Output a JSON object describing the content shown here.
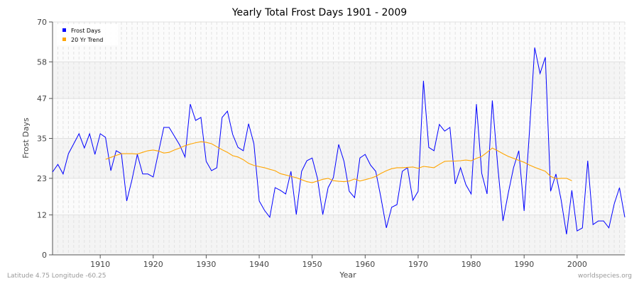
{
  "chart_data": {
    "type": "line",
    "title": "Yearly Total Frost Days 1901 - 2009",
    "xlabel": "Year",
    "ylabel": "Frost Days",
    "xlim": [
      1901,
      2009
    ],
    "ylim": [
      0,
      70
    ],
    "yticks": [
      0,
      12,
      23,
      35,
      47,
      58,
      70
    ],
    "xticks": [
      1910,
      1920,
      1930,
      1940,
      1950,
      1960,
      1970,
      1980,
      1990,
      2000
    ],
    "grid": true,
    "legend_position": "top-left",
    "series": [
      {
        "name": "Frost Days",
        "color": "#0000ff",
        "x_start": 1901,
        "values": [
          24.9,
          27.2,
          24.3,
          30.4,
          33.4,
          36.4,
          32.1,
          36.4,
          30.2,
          36.4,
          35.3,
          25.3,
          31.3,
          30.4,
          16.2,
          22.6,
          30.2,
          24.3,
          24.3,
          23.4,
          30.9,
          38.3,
          38.3,
          35.7,
          33.0,
          29.4,
          45.3,
          40.4,
          41.3,
          28.1,
          25.3,
          26.2,
          41.3,
          43.2,
          36.2,
          32.3,
          31.3,
          39.4,
          33.4,
          16.2,
          13.4,
          11.3,
          20.2,
          19.4,
          18.3,
          25.1,
          12.1,
          25.1,
          28.3,
          29.1,
          23.0,
          12.1,
          20.2,
          23.2,
          33.2,
          28.1,
          19.1,
          17.2,
          29.1,
          30.2,
          27.0,
          25.1,
          17.0,
          8.1,
          14.3,
          15.1,
          25.1,
          26.2,
          16.4,
          19.1,
          52.3,
          32.3,
          31.3,
          39.2,
          37.2,
          38.3,
          21.3,
          26.2,
          21.1,
          18.3,
          45.3,
          24.5,
          18.3,
          46.4,
          27.0,
          10.2,
          18.5,
          26.2,
          31.3,
          13.2,
          37.0,
          62.3,
          54.5,
          59.4,
          19.1,
          24.3,
          16.4,
          6.2,
          19.4,
          7.2,
          8.1,
          28.3,
          9.1,
          10.2,
          10.2,
          8.1,
          15.3,
          20.2,
          11.3
        ]
      },
      {
        "name": "20 Yr Trend",
        "color": "#ffa500",
        "x_start": 1911,
        "values": [
          28.7,
          29.3,
          29.9,
          30.4,
          30.4,
          30.4,
          30.3,
          30.8,
          31.3,
          31.5,
          31.2,
          30.6,
          30.8,
          31.5,
          32.1,
          32.8,
          33.3,
          33.7,
          34.0,
          33.8,
          33.4,
          32.5,
          31.6,
          30.8,
          29.8,
          29.4,
          28.6,
          27.5,
          26.9,
          26.5,
          26.2,
          25.7,
          25.3,
          24.4,
          24.0,
          23.6,
          23.2,
          22.6,
          22.0,
          21.7,
          22.2,
          22.7,
          23.0,
          22.3,
          22.1,
          22.0,
          22.2,
          22.8,
          22.2,
          22.6,
          23.0,
          23.6,
          24.5,
          25.3,
          25.9,
          26.2,
          26.2,
          26.3,
          26.4,
          26.0,
          26.6,
          26.4,
          26.2,
          27.2,
          28.1,
          28.2,
          28.2,
          28.3,
          28.5,
          28.3,
          29.0,
          29.6,
          30.8,
          32.1,
          31.3,
          30.4,
          29.6,
          29.0,
          28.4,
          27.8,
          27.0,
          26.3,
          25.7,
          25.1,
          23.6,
          22.9,
          23.0,
          23.0,
          22.3
        ]
      }
    ]
  },
  "footer": {
    "location": "Latitude 4.75 Longitude -60.25",
    "credit": "worldspecies.org"
  }
}
